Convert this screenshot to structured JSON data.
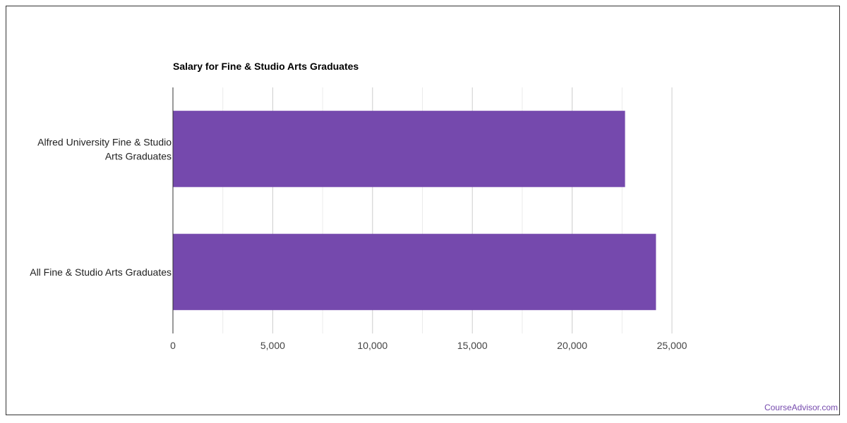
{
  "chart_data": {
    "type": "bar",
    "orientation": "horizontal",
    "title": "Salary for Fine & Studio Arts Graduates",
    "categories": [
      [
        "Alfred University Fine & Studio",
        "Arts Graduates"
      ],
      [
        "All Fine & Studio Arts Graduates"
      ]
    ],
    "values": [
      22650,
      24200
    ],
    "xlim": [
      0,
      25000
    ],
    "x_ticks": [
      0,
      5000,
      10000,
      15000,
      20000,
      25000
    ],
    "x_tick_labels": [
      "0",
      "5,000",
      "10,000",
      "15,000",
      "20,000",
      "25,000"
    ],
    "grid": true,
    "bar_color": "#7549ad"
  },
  "watermark": {
    "text": "CourseAdvisor.com",
    "color": "#7549ad"
  }
}
